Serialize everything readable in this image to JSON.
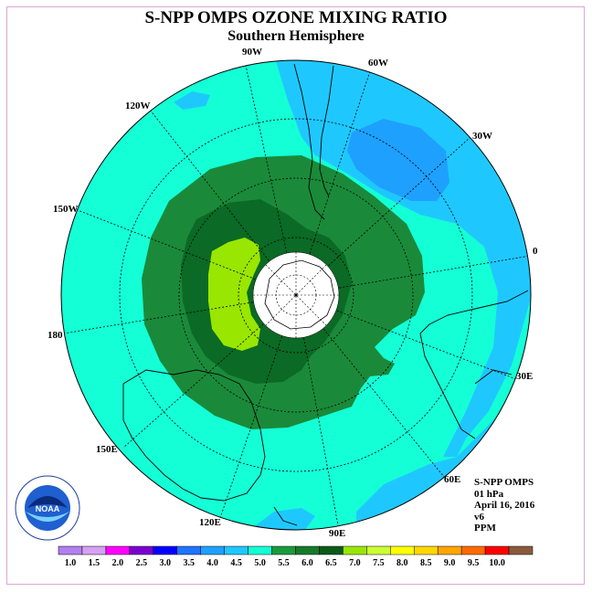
{
  "title": "S-NPP OMPS OZONE MIXING RATIO",
  "subtitle": "Southern Hemisphere",
  "longitude_labels": [
    "90W",
    "60W",
    "30W",
    "0",
    "30E",
    "60E",
    "90E",
    "120E",
    "150E",
    "180",
    "150W",
    "120W"
  ],
  "info": {
    "instrument": "S-NPP OMPS",
    "level": "01 hPa",
    "date": "April 16, 2016",
    "version": "v6",
    "units": "PPM"
  },
  "logo_text": "NOAA",
  "colorbar": {
    "ticks": [
      "1.0",
      "1.5",
      "2.0",
      "2.5",
      "3.0",
      "3.5",
      "4.0",
      "4.5",
      "5.0",
      "5.5",
      "6.0",
      "6.5",
      "7.0",
      "7.5",
      "8.0",
      "8.5",
      "9.0",
      "9.5",
      "10.0"
    ],
    "colors": [
      "#b27fef",
      "#d6a0f3",
      "#ff00ff",
      "#7a00d0",
      "#0000ff",
      "#1e74ff",
      "#1ea0ff",
      "#1ec8ff",
      "#14ffd6",
      "#1a9a3c",
      "#157a2a",
      "#0a5a1a",
      "#99e600",
      "#ccff33",
      "#ffff00",
      "#ffd700",
      "#ffa500",
      "#ff6a00",
      "#ff0000",
      "#8b5a3c"
    ]
  },
  "map_colors": {
    "ocean_bg": "#14ffd6",
    "level_4_5": "#1ec8ff",
    "level_4_0": "#1ea0ff",
    "level_5_5": "#1a8a3a",
    "level_6_0": "#0b6a25",
    "level_6_5": "#99e600",
    "pole_hole": "#ffffff"
  }
}
